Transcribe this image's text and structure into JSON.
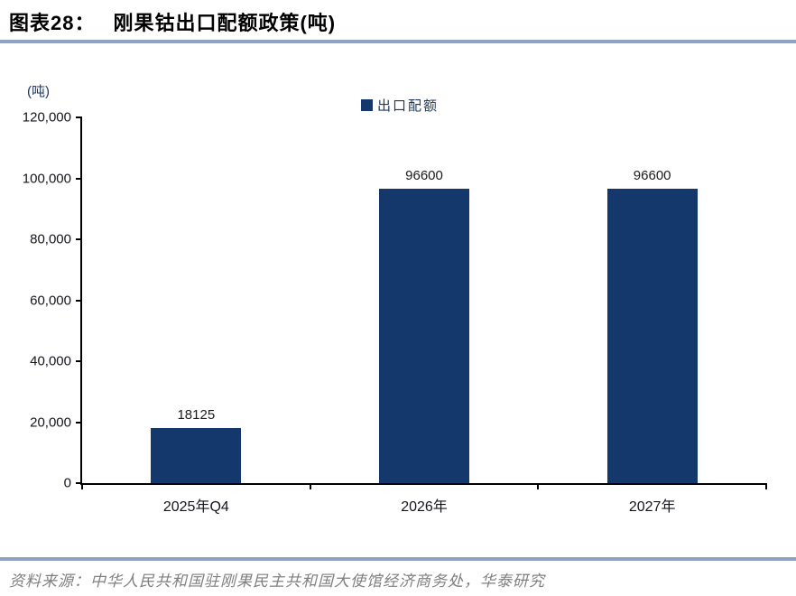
{
  "title": {
    "prefix": "图表28：",
    "text": "刚果钴出口配额政策(吨)"
  },
  "unit_label": "(吨)",
  "legend": {
    "label": "出口配额"
  },
  "source": "资料来源：中华人民共和国驻刚果民主共和国大使馆经济商务处，华泰研究",
  "colors": {
    "bar": "#14386B",
    "rule": "#8EA3C4",
    "axis": "#000000",
    "unit_text": "#1F3864",
    "source_text": "#7F7F7F"
  },
  "chart_data": {
    "type": "bar",
    "title": "刚果钴出口配额政策(吨)",
    "series_name": "出口配额",
    "categories": [
      "2025年Q4",
      "2026年",
      "2027年"
    ],
    "values": [
      18125,
      96600,
      96600
    ],
    "data_labels": [
      "18125",
      "96600",
      "96600"
    ],
    "xlabel": "",
    "ylabel": "(吨)",
    "ylim": [
      0,
      120000
    ],
    "ytick_step": 20000,
    "ytick_labels": [
      "0",
      "20,000",
      "40,000",
      "60,000",
      "80,000",
      "100,000",
      "120,000"
    ],
    "grid": false,
    "legend_position": "top-center",
    "bar_color": "#14386B"
  }
}
